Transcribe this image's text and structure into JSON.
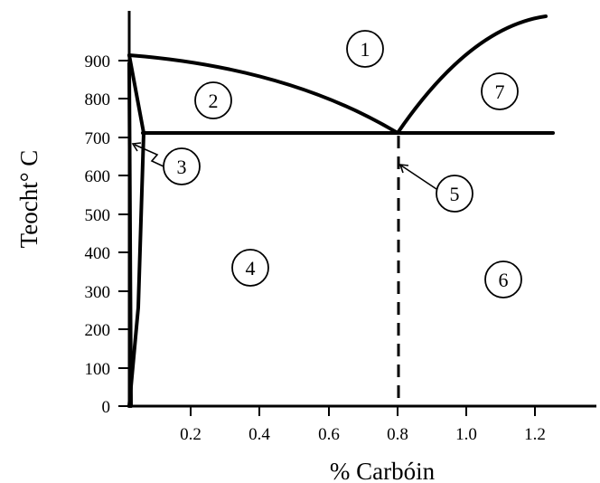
{
  "diagram": {
    "axis_x_label": "% Carbóin",
    "axis_y_label": "Teocht° C",
    "x_ticks": [
      {
        "value": 0.2,
        "label": "0.2"
      },
      {
        "value": 0.4,
        "label": "0.4"
      },
      {
        "value": 0.6,
        "label": "0.6"
      },
      {
        "value": 0.8,
        "label": "0.8"
      },
      {
        "value": 1.0,
        "label": "1.0"
      },
      {
        "value": 1.2,
        "label": "1.2"
      }
    ],
    "y_ticks": [
      {
        "value": 0,
        "label": "0"
      },
      {
        "value": 100,
        "label": "100"
      },
      {
        "value": 200,
        "label": "200"
      },
      {
        "value": 300,
        "label": "300"
      },
      {
        "value": 400,
        "label": "400"
      },
      {
        "value": 500,
        "label": "500"
      },
      {
        "value": 600,
        "label": "600"
      },
      {
        "value": 700,
        "label": "700"
      },
      {
        "value": 800,
        "label": "800"
      },
      {
        "value": 900,
        "label": "900"
      }
    ],
    "region_labels": [
      "1",
      "2",
      "3",
      "4",
      "5",
      "6",
      "7"
    ]
  }
}
